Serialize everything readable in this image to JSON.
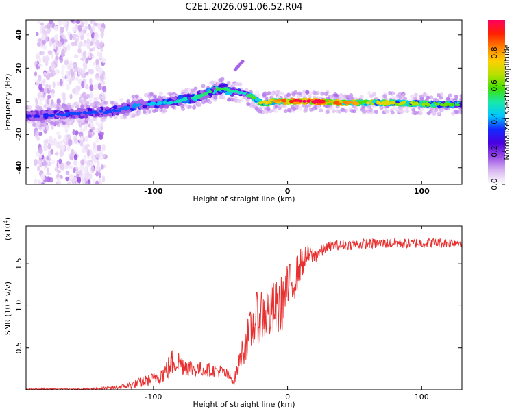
{
  "page_title": "C2E1.2026.091.06.52.R04",
  "chart_data": [
    {
      "type": "heatmap",
      "panel": "spectrogram",
      "xlabel": "Height of straight line (km)",
      "ylabel": "Frequency (Hz)",
      "xlim": [
        -195,
        130
      ],
      "ylim": [
        -50,
        49
      ],
      "xticks": [
        -100,
        0,
        100
      ],
      "yticks": [
        -40,
        -20,
        0,
        20,
        40
      ],
      "xtick_labels": [
        "-100",
        "0",
        "100"
      ],
      "ytick_labels": [
        "-40",
        "-20",
        "0",
        "20",
        "40"
      ],
      "colorbar": {
        "label": "Normalized spectral amplitude",
        "range": [
          0,
          1
        ],
        "ticks": [
          0.0,
          0.2,
          0.4,
          0.6,
          0.8
        ],
        "tick_labels": [
          "0.0",
          "0.2",
          "0.4",
          "0.6",
          "0.8"
        ],
        "stops": [
          "#ffffff",
          "#d9b8f0",
          "#9a4ce6",
          "#4a00e0",
          "#1428ff",
          "#00c8ff",
          "#18e8a8",
          "#40e000",
          "#b8e000",
          "#ffd000",
          "#ff8000",
          "#ff2000",
          "#ff0060"
        ]
      },
      "ridge": {
        "description_free": true,
        "x": [
          -195,
          -170,
          -150,
          -130,
          -110,
          -90,
          -70,
          -55,
          -48,
          -42,
          -38,
          -34,
          -30,
          -25,
          -20,
          -15,
          -10,
          0,
          10,
          20,
          40,
          60,
          80,
          100,
          120,
          130
        ],
        "y": [
          -9,
          -8,
          -7,
          -6,
          -2,
          -1,
          2,
          6,
          8,
          6,
          6,
          5,
          4,
          2,
          -1,
          -1,
          0,
          0,
          0,
          0,
          -1,
          -1,
          -1,
          -1.5,
          -2,
          -2
        ],
        "amplitude": [
          0.25,
          0.3,
          0.3,
          0.3,
          0.35,
          0.4,
          0.45,
          0.5,
          0.5,
          0.45,
          0.45,
          0.4,
          0.45,
          0.55,
          0.65,
          0.7,
          0.75,
          0.85,
          0.95,
          0.95,
          0.8,
          0.7,
          0.65,
          0.6,
          0.55,
          0.5
        ]
      }
    },
    {
      "type": "line",
      "panel": "snr",
      "xlabel": "Height of straight line (km)",
      "ylabel": "SNR (10 * v/v)",
      "y_multiplier_label": "(x10",
      "y_multiplier_exp": "4",
      "y_multiplier_close": ")",
      "xlim": [
        -195,
        130
      ],
      "ylim": [
        0,
        1.95
      ],
      "xticks": [
        -100,
        0,
        100
      ],
      "yticks": [
        0.5,
        1.0,
        1.5
      ],
      "xtick_labels": [
        "-100",
        "0",
        "100"
      ],
      "ytick_labels": [
        "0.5",
        "1.0",
        "1.5"
      ],
      "color": "#e83030",
      "series": [
        {
          "name": "SNR",
          "x": [
            -195,
            -170,
            -150,
            -130,
            -115,
            -100,
            -92,
            -88,
            -85,
            -80,
            -75,
            -70,
            -60,
            -50,
            -45,
            -40,
            -38,
            -35,
            -30,
            -25,
            -20,
            -15,
            -10,
            -5,
            0,
            5,
            10,
            15,
            20,
            25,
            30,
            35,
            40,
            50,
            60,
            70,
            80,
            90,
            100,
            110,
            120,
            130
          ],
          "y": [
            0.01,
            0.01,
            0.01,
            0.02,
            0.06,
            0.13,
            0.2,
            0.28,
            0.35,
            0.32,
            0.28,
            0.25,
            0.24,
            0.22,
            0.18,
            0.1,
            0.2,
            0.4,
            0.6,
            0.8,
            0.9,
            0.9,
            0.95,
            1.0,
            1.2,
            1.3,
            1.5,
            1.6,
            1.6,
            1.65,
            1.7,
            1.72,
            1.72,
            1.73,
            1.74,
            1.74,
            1.75,
            1.74,
            1.75,
            1.75,
            1.75,
            1.76
          ],
          "noise": [
            0.01,
            0.01,
            0.01,
            0.02,
            0.05,
            0.08,
            0.12,
            0.15,
            0.17,
            0.14,
            0.12,
            0.1,
            0.08,
            0.08,
            0.07,
            0.05,
            0.1,
            0.15,
            0.25,
            0.3,
            0.35,
            0.35,
            0.35,
            0.35,
            0.3,
            0.25,
            0.2,
            0.12,
            0.1,
            0.08,
            0.06,
            0.06,
            0.06,
            0.06,
            0.06,
            0.06,
            0.06,
            0.06,
            0.06,
            0.06,
            0.06,
            0.06
          ]
        }
      ]
    }
  ]
}
